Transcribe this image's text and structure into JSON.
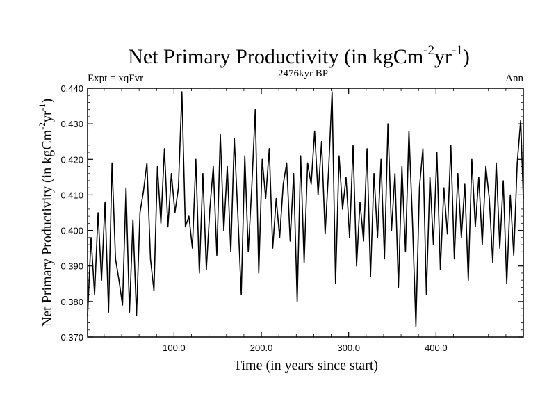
{
  "chart_data": {
    "type": "line",
    "title": {
      "main": "Net Primary Productivity (in kgCm",
      "exp1": "-2",
      "mid": "yr",
      "exp2": "-1",
      "close": ")"
    },
    "subtitle_left": "Expt = xqFvr",
    "subtitle_center": "2476kyr BP",
    "subtitle_right": "Ann",
    "xlabel": "Time (in years since start)",
    "ylabel": {
      "main": "Net Primary Productivity (in kgCm",
      "exp1": "-2",
      "mid": "yr",
      "exp2": "-1",
      "close": ")"
    },
    "xlim": [
      1,
      500
    ],
    "ylim": [
      0.37,
      0.44
    ],
    "xticks": [
      100,
      200,
      300,
      400
    ],
    "xtick_labels": [
      "100.0",
      "200.0",
      "300.0",
      "400.0"
    ],
    "yticks": [
      0.37,
      0.38,
      0.39,
      0.4,
      0.41,
      0.42,
      0.43,
      0.44
    ],
    "ytick_labels": [
      "0.370",
      "0.380",
      "0.390",
      "0.400",
      "0.410",
      "0.420",
      "0.430",
      "0.440"
    ],
    "series": [
      {
        "name": "Net Primary Productivity",
        "color": "#000000",
        "x": [
          1,
          5,
          9,
          13,
          17,
          21,
          25,
          29,
          33,
          37,
          41,
          45,
          49,
          53,
          57,
          61,
          65,
          69,
          73,
          77,
          81,
          85,
          89,
          93,
          97,
          101,
          105,
          109,
          113,
          117,
          121,
          125,
          129,
          133,
          137,
          141,
          145,
          149,
          153,
          157,
          161,
          165,
          169,
          173,
          177,
          181,
          185,
          189,
          193,
          197,
          201,
          205,
          209,
          213,
          217,
          221,
          225,
          229,
          233,
          237,
          241,
          245,
          249,
          253,
          257,
          261,
          265,
          269,
          273,
          277,
          281,
          285,
          289,
          293,
          297,
          301,
          305,
          309,
          313,
          317,
          321,
          325,
          329,
          333,
          337,
          341,
          345,
          349,
          353,
          357,
          361,
          365,
          369,
          373,
          377,
          381,
          385,
          389,
          393,
          397,
          401,
          405,
          409,
          413,
          417,
          421,
          425,
          429,
          433,
          437,
          441,
          445,
          449,
          453,
          457,
          461,
          465,
          469,
          473,
          477,
          481,
          485,
          489,
          493,
          497,
          500
        ],
        "y": [
          0.376,
          0.398,
          0.382,
          0.405,
          0.386,
          0.408,
          0.377,
          0.419,
          0.392,
          0.386,
          0.379,
          0.412,
          0.377,
          0.403,
          0.376,
          0.405,
          0.411,
          0.419,
          0.392,
          0.383,
          0.418,
          0.402,
          0.423,
          0.401,
          0.416,
          0.405,
          0.412,
          0.439,
          0.401,
          0.404,
          0.395,
          0.42,
          0.388,
          0.416,
          0.389,
          0.406,
          0.418,
          0.393,
          0.427,
          0.4,
          0.418,
          0.394,
          0.426,
          0.405,
          0.382,
          0.421,
          0.394,
          0.412,
          0.434,
          0.388,
          0.42,
          0.409,
          0.423,
          0.395,
          0.409,
          0.398,
          0.413,
          0.419,
          0.397,
          0.416,
          0.38,
          0.421,
          0.391,
          0.419,
          0.413,
          0.428,
          0.41,
          0.425,
          0.399,
          0.417,
          0.439,
          0.385,
          0.421,
          0.406,
          0.415,
          0.398,
          0.424,
          0.39,
          0.408,
          0.397,
          0.423,
          0.387,
          0.416,
          0.398,
          0.42,
          0.392,
          0.43,
          0.4,
          0.416,
          0.384,
          0.418,
          0.394,
          0.428,
          0.403,
          0.373,
          0.412,
          0.423,
          0.382,
          0.415,
          0.396,
          0.422,
          0.389,
          0.412,
          0.399,
          0.424,
          0.392,
          0.416,
          0.398,
          0.413,
          0.386,
          0.42,
          0.401,
          0.415,
          0.396,
          0.418,
          0.409,
          0.391,
          0.419,
          0.395,
          0.414,
          0.385,
          0.41,
          0.393,
          0.419,
          0.431,
          0.409
        ]
      }
    ],
    "grid": false
  }
}
